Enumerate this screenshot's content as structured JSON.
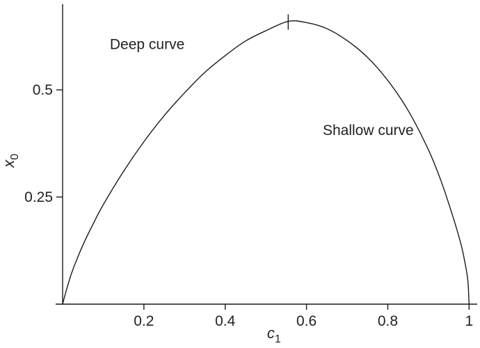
{
  "chart_data": {
    "type": "line",
    "title": "",
    "xlabel": {
      "base": "c",
      "subscript": "1"
    },
    "ylabel": {
      "base": "x",
      "subscript": "0"
    },
    "xlim": [
      0,
      1.02
    ],
    "ylim": [
      0,
      0.7
    ],
    "x_ticks": [
      {
        "value": 0.2,
        "label": "0.2"
      },
      {
        "value": 0.4,
        "label": "0.4"
      },
      {
        "value": 0.6,
        "label": "0.6"
      },
      {
        "value": 0.8,
        "label": "0.8"
      },
      {
        "value": 1.0,
        "label": "1"
      }
    ],
    "y_ticks": [
      {
        "value": 0.25,
        "label": "0.25"
      },
      {
        "value": 0.5,
        "label": "0.5"
      }
    ],
    "grid": false,
    "legend": "none",
    "series": [
      {
        "x": [
          0,
          0.01,
          0.025,
          0.05,
          0.075,
          0.1,
          0.15,
          0.2,
          0.25,
          0.3,
          0.35,
          0.4,
          0.45,
          0.5,
          0.555,
          0.6,
          0.65,
          0.7,
          0.75,
          0.8,
          0.85,
          0.9,
          0.93,
          0.96,
          0.98,
          0.99,
          0.997,
          1.0
        ],
        "y": [
          0,
          0.035,
          0.08,
          0.138,
          0.187,
          0.232,
          0.31,
          0.379,
          0.44,
          0.493,
          0.541,
          0.58,
          0.614,
          0.638,
          0.66,
          0.657,
          0.643,
          0.615,
          0.576,
          0.522,
          0.452,
          0.36,
          0.29,
          0.205,
          0.14,
          0.096,
          0.055,
          0.0
        ]
      }
    ],
    "marker": {
      "x": 0.555,
      "y": 0.66,
      "shape": "vertical-tick"
    },
    "annotations": [
      {
        "text": "Deep curve",
        "x": 0.3,
        "y": 0.595,
        "anchor": "end"
      },
      {
        "text": "Shallow curve",
        "x": 0.64,
        "y": 0.395,
        "anchor": "start"
      }
    ],
    "colors": {
      "line": "#1a1a1a",
      "text": "#222222",
      "axis": "#1a1a1a"
    }
  }
}
